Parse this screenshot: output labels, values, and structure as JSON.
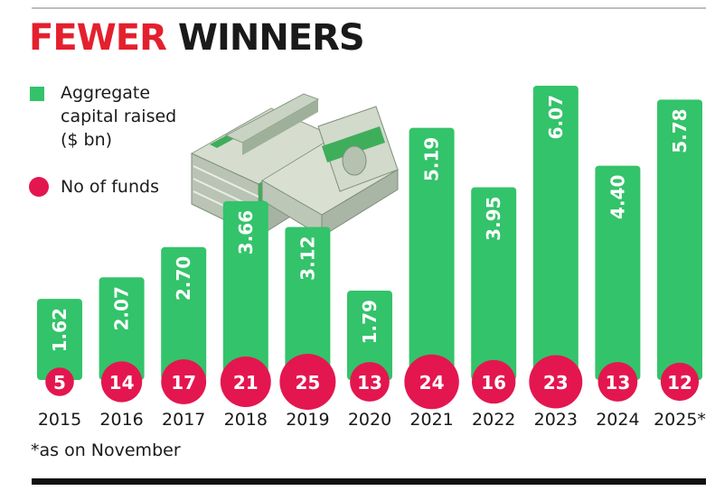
{
  "header": {
    "title_red": "FEWER",
    "title_dark": "WINNERS"
  },
  "legend": {
    "capital_label": "Aggregate capital raised ($ bn)",
    "capital_line1": "Aggregate",
    "capital_line2": "capital raised",
    "capital_line3": "($ bn)",
    "funds_label": "No of funds"
  },
  "footnote": "*as on November",
  "colors": {
    "bar": "#33c36a",
    "bubble": "#e4164f",
    "title_accent": "#e4202e"
  },
  "illustration": "stacked-cash-bundles",
  "chart_data": {
    "type": "bar",
    "categories": [
      "2015",
      "2016",
      "2017",
      "2018",
      "2019",
      "2020",
      "2021",
      "2022",
      "2023",
      "2024",
      "2025*"
    ],
    "series": [
      {
        "name": "Aggregate capital raised ($ bn)",
        "values": [
          1.62,
          2.07,
          2.7,
          3.66,
          3.12,
          1.79,
          5.19,
          3.95,
          6.07,
          4.4,
          5.78
        ]
      },
      {
        "name": "No of funds",
        "values": [
          5,
          14,
          17,
          21,
          25,
          13,
          24,
          16,
          23,
          13,
          12
        ]
      }
    ],
    "value_labels": [
      "1.62",
      "2.07",
      "2.70",
      "3.66",
      "3.12",
      "1.79",
      "5.19",
      "3.95",
      "6.07",
      "4.40",
      "5.78"
    ],
    "ylim": [
      0,
      6.07
    ],
    "grid": false,
    "legend_position": "top-left"
  }
}
